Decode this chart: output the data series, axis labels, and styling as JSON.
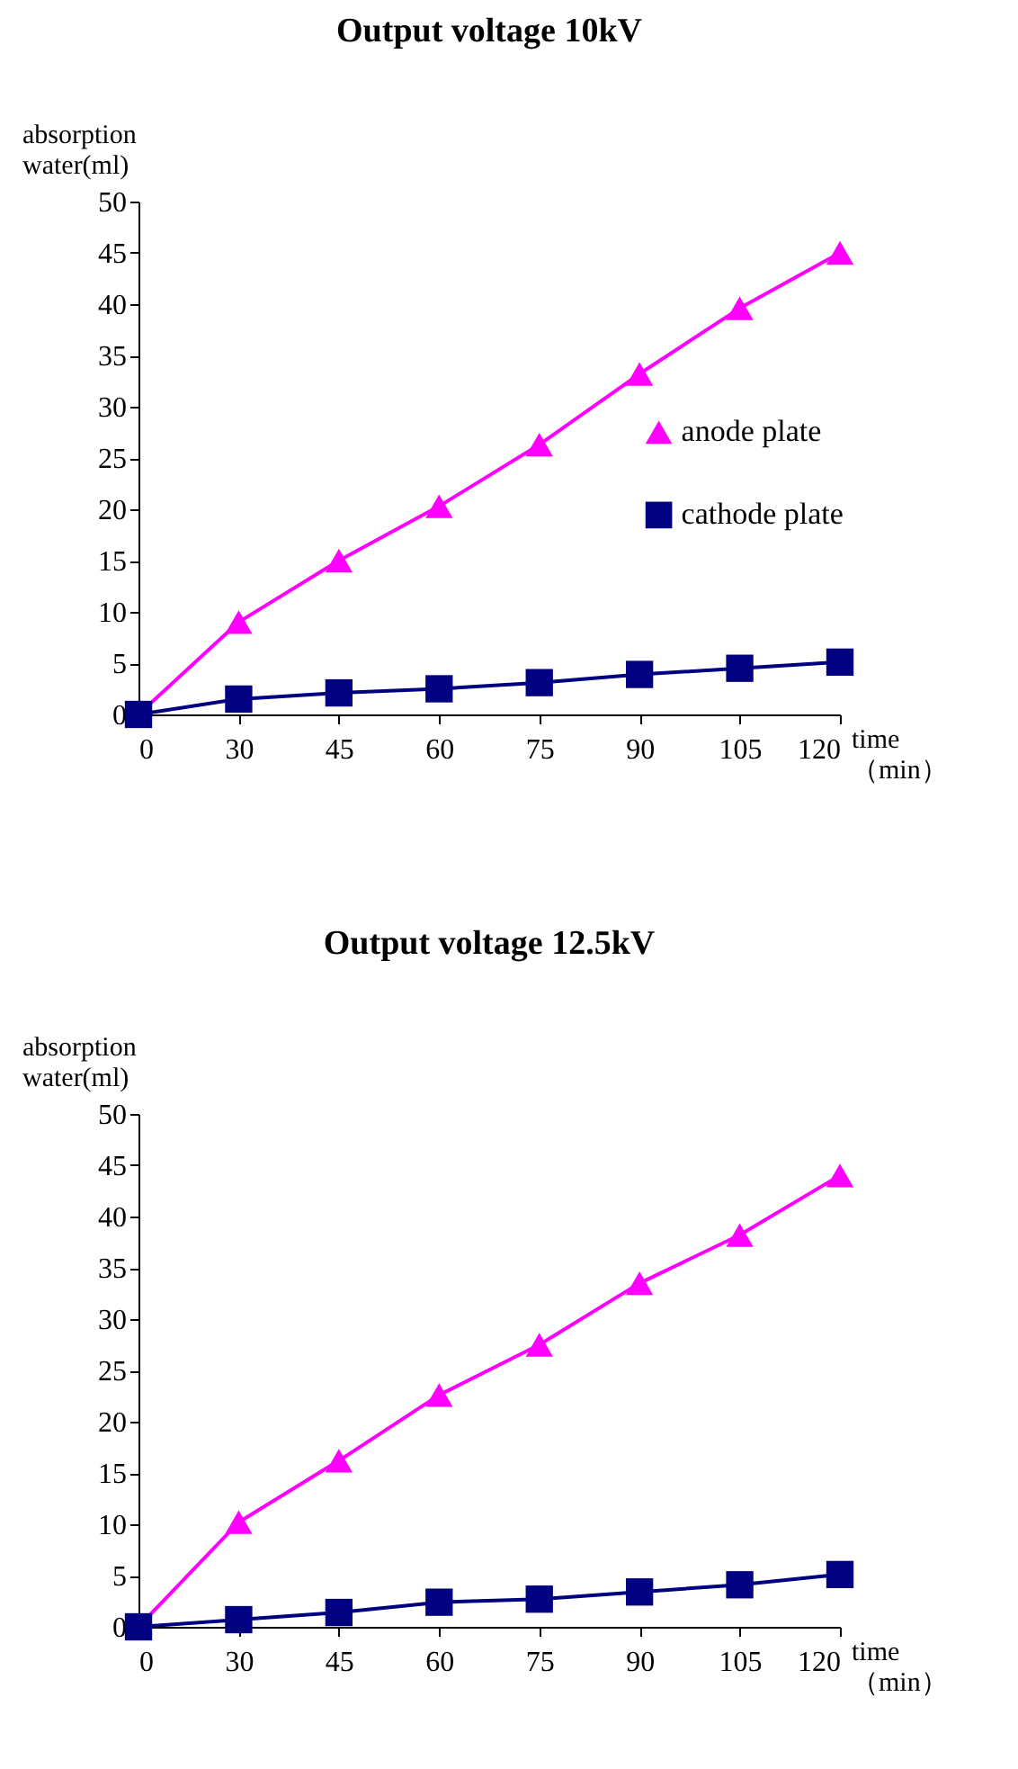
{
  "chart_data": [
    {
      "type": "line",
      "title": "Output voltage 10kV",
      "ylabel": "absorption\nwater(ml)",
      "xlabel": "time\n（min）",
      "categories": [
        "0",
        "30",
        "45",
        "60",
        "75",
        "90",
        "105",
        "120"
      ],
      "ylim": [
        0,
        50
      ],
      "yticks": [
        0,
        5,
        10,
        15,
        20,
        25,
        30,
        35,
        40,
        45,
        50
      ],
      "grid": false,
      "legend": "right",
      "series": [
        {
          "name": "anode plate",
          "color": "#ff00ff",
          "marker": "triangle",
          "values": [
            0,
            9,
            15,
            20.3,
            26.3,
            33.2,
            39.6,
            45
          ]
        },
        {
          "name": "cathode plate",
          "color": "#000080",
          "marker": "square",
          "values": [
            0,
            1.5,
            2.1,
            2.5,
            3.1,
            3.9,
            4.5,
            5.1
          ]
        }
      ]
    },
    {
      "type": "line",
      "title": "Output voltage 12.5kV",
      "ylabel": "absorption\nwater(ml)",
      "xlabel": "time\n（min）",
      "categories": [
        "0",
        "30",
        "45",
        "60",
        "75",
        "90",
        "105",
        "120"
      ],
      "ylim": [
        0,
        50
      ],
      "yticks": [
        0,
        5,
        10,
        15,
        20,
        25,
        30,
        35,
        40,
        45,
        50
      ],
      "grid": false,
      "legend": "right",
      "series": [
        {
          "name": "anode plate",
          "color": "#ff00ff",
          "marker": "triangle",
          "values": [
            0,
            10.2,
            16.2,
            22.6,
            27.5,
            33.5,
            38.2,
            44
          ]
        },
        {
          "name": "cathode plate",
          "color": "#000080",
          "marker": "square",
          "values": [
            0,
            0.7,
            1.4,
            2.4,
            2.7,
            3.4,
            4.1,
            5.1
          ]
        }
      ]
    }
  ]
}
